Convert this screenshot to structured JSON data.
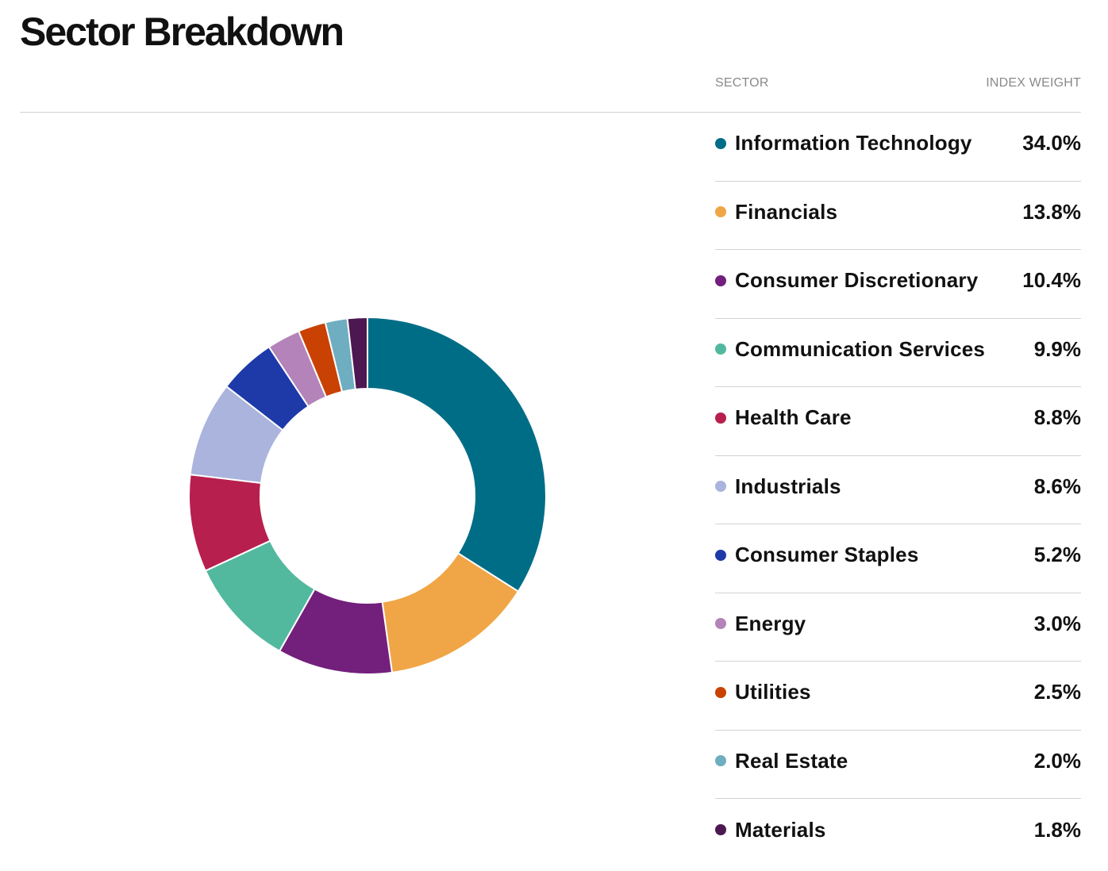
{
  "title": "Sector Breakdown",
  "columns": {
    "sector": "SECTOR",
    "weight": "INDEX WEIGHT"
  },
  "chart_data": {
    "type": "pie",
    "donut": true,
    "title": "Sector Breakdown",
    "categories": [
      "Information Technology",
      "Financials",
      "Consumer Discretionary",
      "Communication Services",
      "Health Care",
      "Industrials",
      "Consumer Staples",
      "Energy",
      "Utilities",
      "Real Estate",
      "Materials"
    ],
    "values": [
      34.0,
      13.8,
      10.4,
      9.9,
      8.8,
      8.6,
      5.2,
      3.0,
      2.5,
      2.0,
      1.8
    ],
    "labels": [
      "34.0%",
      "13.8%",
      "10.4%",
      "9.9%",
      "8.8%",
      "8.6%",
      "5.2%",
      "3.0%",
      "2.5%",
      "2.0%",
      "1.8%"
    ],
    "colors": [
      "#006d87",
      "#f0a646",
      "#731f7c",
      "#52b99e",
      "#b71f4e",
      "#aab4dd",
      "#1d3aa8",
      "#b383b9",
      "#c94103",
      "#6fadc0",
      "#4d1751"
    ],
    "legend_position": "right"
  }
}
